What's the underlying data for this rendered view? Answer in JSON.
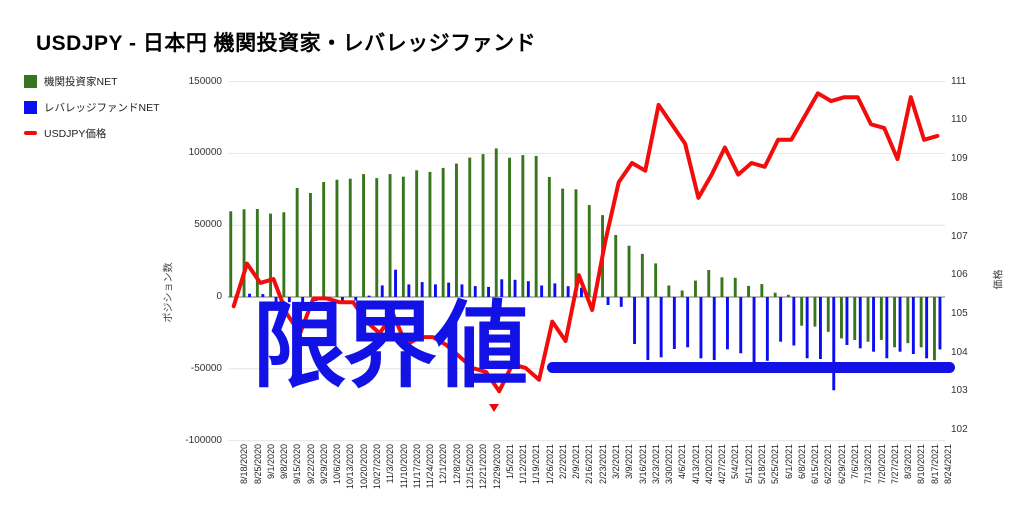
{
  "chart_title": "USDJPY - 日本円 機関投資家・レバレッジファンド",
  "legend": [
    {
      "label": "機関投資家NET",
      "color": "#38761d",
      "shape": "square",
      "icon": "green-square-swatch"
    },
    {
      "label": "レバレッジファンドNET",
      "color": "#0d0df2",
      "shape": "square",
      "icon": "blue-square-swatch"
    },
    {
      "label": "USDJPY価格",
      "color": "#f20d0d",
      "shape": "dash",
      "icon": "red-dash-swatch"
    }
  ],
  "watermark": {
    "text": "限界値",
    "color": "#1212e6",
    "underline": true,
    "arrow_icon": "red-down-triangle"
  },
  "chart_data": {
    "type": "bar",
    "subtype": "grouped-columns-with-line-overlay",
    "grid": true,
    "legend_position": "left",
    "categories": [
      "8/18/2020",
      "8/25/2020",
      "9/1/2020",
      "9/8/2020",
      "9/15/2020",
      "9/22/2020",
      "9/29/2020",
      "10/6/2020",
      "10/13/2020",
      "10/20/2020",
      "10/27/2020",
      "11/3/2020",
      "11/10/2020",
      "11/17/2020",
      "11/24/2020",
      "12/1/2020",
      "12/8/2020",
      "12/15/2020",
      "12/21/2020",
      "12/29/2020",
      "1/5/2021",
      "1/12/2021",
      "1/19/2021",
      "1/26/2021",
      "2/2/2021",
      "2/9/2021",
      "2/16/2021",
      "2/23/2021",
      "3/2/2021",
      "3/9/2021",
      "3/16/2021",
      "3/23/2021",
      "3/30/2021",
      "4/6/2021",
      "4/13/2021",
      "4/20/2021",
      "4/27/2021",
      "5/4/2021",
      "5/11/2021",
      "5/18/2021",
      "5/25/2021",
      "6/1/2021",
      "6/8/2021",
      "6/15/2021",
      "6/22/2021",
      "6/29/2021",
      "7/6/2021",
      "7/13/2021",
      "7/20/2021",
      "7/27/2021",
      "8/3/2021",
      "8/10/2021",
      "8/17/2021",
      "8/24/2021"
    ],
    "series": [
      {
        "name": "機関投資家NET",
        "type": "bar",
        "axis": "left",
        "color": "#38761d",
        "values": [
          59700,
          61100,
          61300,
          58100,
          59000,
          75900,
          72400,
          80100,
          81700,
          82400,
          85600,
          82800,
          85600,
          83800,
          88200,
          87100,
          89900,
          92900,
          97100,
          99500,
          103500,
          97000,
          98800,
          98200,
          83600,
          75500,
          75000,
          64000,
          57000,
          43200,
          35700,
          30000,
          23400,
          8000,
          4500,
          11400,
          18800,
          13700,
          13400,
          7700,
          9000,
          3000,
          1500,
          -20000,
          -20600,
          -24200,
          -28800,
          -30000,
          -31100,
          -29900,
          -35000,
          -32200,
          -35000,
          -44000
        ]
      },
      {
        "name": "レバレッジファンドNET",
        "type": "bar",
        "axis": "left",
        "color": "#0d0df2",
        "values": [
          1500,
          2300,
          2000,
          -3900,
          -3600,
          -4600,
          -2800,
          -2000,
          -3000,
          -2500,
          1000,
          8100,
          19000,
          8800,
          10400,
          8800,
          10000,
          8800,
          7600,
          7000,
          12300,
          12000,
          11000,
          8000,
          9500,
          7500,
          6500,
          2500,
          -5600,
          -6800,
          -32700,
          -43900,
          -42000,
          -36200,
          -35000,
          -42700,
          -43900,
          -36400,
          -39200,
          -45700,
          -44400,
          -31100,
          -33800,
          -42700,
          -43200,
          -65000,
          -33400,
          -35700,
          -38100,
          -42700,
          -38100,
          -39700,
          -42700,
          -36500
        ]
      },
      {
        "name": "USDJPY価格",
        "type": "line",
        "axis": "right",
        "color": "#f20d0d",
        "values": [
          105.2,
          106.3,
          105.8,
          105.9,
          105.0,
          104.5,
          105.4,
          105.4,
          105.3,
          105.3,
          104.8,
          104.5,
          105.0,
          104.2,
          104.4,
          104.4,
          104.2,
          103.9,
          103.6,
          103.5,
          103.0,
          103.7,
          103.6,
          103.3,
          104.8,
          104.3,
          106.0,
          105.1,
          106.9,
          108.4,
          108.9,
          108.7,
          110.4,
          109.9,
          109.4,
          108.0,
          108.6,
          109.3,
          108.6,
          108.9,
          108.8,
          109.5,
          109.5,
          110.1,
          110.7,
          110.5,
          110.6,
          110.6,
          109.9,
          109.8,
          109.0,
          110.6,
          109.5,
          109.6
        ]
      }
    ],
    "left_axis": {
      "title": "ポジション数",
      "min": -100000,
      "max": 150000,
      "ticks": [
        {
          "label": "150000",
          "value": 150000
        },
        {
          "label": "100000",
          "value": 100000
        },
        {
          "label": "50000",
          "value": 50000
        },
        {
          "label": "0",
          "value": 0
        },
        {
          "label": "-50000",
          "value": -50000
        },
        {
          "label": "-100000",
          "value": -100000
        }
      ]
    },
    "right_axis": {
      "title": "価格",
      "min": 102,
      "max": 111,
      "ticks": [
        {
          "label": "111",
          "value": 111
        },
        {
          "label": "110",
          "value": 110
        },
        {
          "label": "109",
          "value": 109
        },
        {
          "label": "108",
          "value": 108
        },
        {
          "label": "107",
          "value": 107
        },
        {
          "label": "106",
          "value": 106
        },
        {
          "label": "105",
          "value": 105
        },
        {
          "label": "104",
          "value": 104
        },
        {
          "label": "103",
          "value": 103
        },
        {
          "label": "102",
          "value": 102
        }
      ]
    }
  }
}
